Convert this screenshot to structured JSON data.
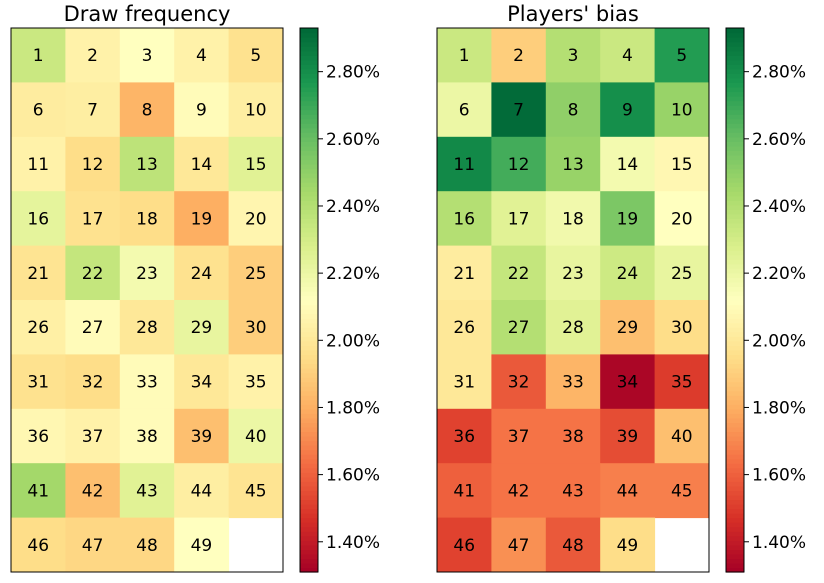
{
  "chart_data": [
    {
      "type": "heatmap",
      "title": "Draw frequency",
      "colormap": "RdYlGn",
      "labels": [
        [
          1,
          2,
          3,
          4,
          5
        ],
        [
          6,
          7,
          8,
          9,
          10
        ],
        [
          11,
          12,
          13,
          14,
          15
        ],
        [
          16,
          17,
          18,
          19,
          20
        ],
        [
          21,
          22,
          23,
          24,
          25
        ],
        [
          26,
          27,
          28,
          29,
          30
        ],
        [
          31,
          32,
          33,
          34,
          35
        ],
        [
          36,
          37,
          38,
          39,
          40
        ],
        [
          41,
          42,
          43,
          44,
          45
        ],
        [
          46,
          47,
          48,
          49,
          null
        ]
      ],
      "values": [
        [
          2.33,
          2.05,
          2.12,
          2.05,
          1.97
        ],
        [
          2.02,
          2.03,
          1.82,
          2.1,
          2.03
        ],
        [
          2.05,
          1.95,
          2.37,
          2.0,
          2.25
        ],
        [
          2.23,
          1.97,
          1.95,
          1.8,
          2.07
        ],
        [
          1.98,
          2.35,
          2.17,
          1.97,
          1.9
        ],
        [
          2.04,
          2.1,
          2.0,
          2.22,
          1.9
        ],
        [
          1.97,
          1.95,
          2.1,
          2.0,
          2.05
        ],
        [
          2.08,
          2.05,
          2.1,
          1.85,
          2.2
        ],
        [
          2.45,
          1.85,
          2.25,
          2.03,
          1.98
        ],
        [
          1.95,
          1.93,
          1.93,
          2.12,
          null
        ]
      ],
      "zlim": [
        1.31,
        2.93
      ],
      "zticks": [
        {
          "value": 1.4,
          "label": "1.40%"
        },
        {
          "value": 1.6,
          "label": "1.60%"
        },
        {
          "value": 1.8,
          "label": "1.80%"
        },
        {
          "value": 2.0,
          "label": "2.00%"
        },
        {
          "value": 2.2,
          "label": "2.20%"
        },
        {
          "value": 2.4,
          "label": "2.40%"
        },
        {
          "value": 2.6,
          "label": "2.60%"
        },
        {
          "value": 2.8,
          "label": "2.80%"
        }
      ]
    },
    {
      "type": "heatmap",
      "title": "Players' bias",
      "colormap": "RdYlGn",
      "labels": [
        [
          1,
          2,
          3,
          4,
          5
        ],
        [
          6,
          7,
          8,
          9,
          10
        ],
        [
          11,
          12,
          13,
          14,
          15
        ],
        [
          16,
          17,
          18,
          19,
          20
        ],
        [
          21,
          22,
          23,
          24,
          25
        ],
        [
          26,
          27,
          28,
          29,
          30
        ],
        [
          31,
          32,
          33,
          34,
          35
        ],
        [
          36,
          37,
          38,
          39,
          40
        ],
        [
          41,
          42,
          43,
          44,
          45
        ],
        [
          46,
          47,
          48,
          49,
          null
        ]
      ],
      "values": [
        [
          2.33,
          1.9,
          2.4,
          2.33,
          2.75
        ],
        [
          2.2,
          2.92,
          2.5,
          2.8,
          2.48
        ],
        [
          2.82,
          2.68,
          2.48,
          2.17,
          2.08
        ],
        [
          2.4,
          2.25,
          2.18,
          2.55,
          2.12
        ],
        [
          2.02,
          2.35,
          2.22,
          2.32,
          2.22
        ],
        [
          2.0,
          2.4,
          2.25,
          1.85,
          1.95
        ],
        [
          2.0,
          1.58,
          1.82,
          1.33,
          1.5
        ],
        [
          1.52,
          1.65,
          1.65,
          1.55,
          1.85
        ],
        [
          1.6,
          1.65,
          1.65,
          1.68,
          1.68
        ],
        [
          1.52,
          1.72,
          1.58,
          1.95,
          null
        ]
      ],
      "zlim": [
        1.31,
        2.93
      ],
      "zticks": [
        {
          "value": 1.4,
          "label": "1.40%"
        },
        {
          "value": 1.6,
          "label": "1.60%"
        },
        {
          "value": 1.8,
          "label": "1.80%"
        },
        {
          "value": 2.0,
          "label": "2.00%"
        },
        {
          "value": 2.2,
          "label": "2.20%"
        },
        {
          "value": 2.4,
          "label": "2.40%"
        },
        {
          "value": 2.6,
          "label": "2.60%"
        },
        {
          "value": 2.8,
          "label": "2.80%"
        }
      ]
    }
  ]
}
